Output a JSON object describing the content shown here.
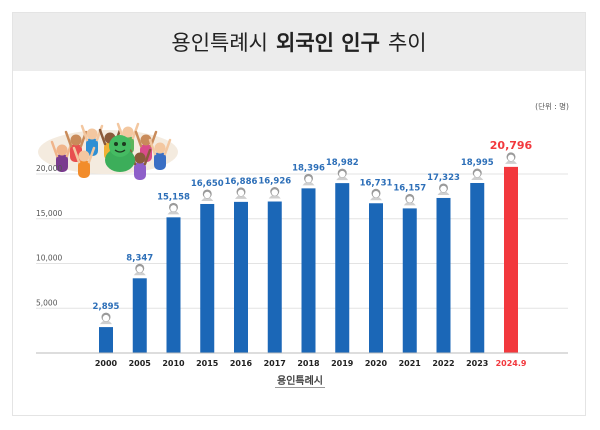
{
  "header": {
    "title_prefix": "용인특례시",
    "title_bold": "외국인 인구",
    "title_suffix": "추이"
  },
  "unit_label": "(단위 : 명)",
  "footer": {
    "logo_text": "용인특례시"
  },
  "colors": {
    "bar": "#1b67b7",
    "bar_highlight": "#f2383d",
    "label": "#2d6fb8",
    "label_highlight": "#f2383d"
  },
  "chart_data": {
    "type": "bar",
    "categories": [
      "2000",
      "2005",
      "2010",
      "2015",
      "2016",
      "2017",
      "2018",
      "2019",
      "2020",
      "2021",
      "2022",
      "2023",
      "2024.9"
    ],
    "values": [
      2895,
      8347,
      15158,
      16650,
      16886,
      16926,
      18396,
      18982,
      16731,
      16157,
      17323,
      18995,
      20796
    ],
    "value_labels": [
      "2,895",
      "8,347",
      "15,158",
      "16,650",
      "16,886",
      "16,926",
      "18,396",
      "18,982",
      "16,731",
      "16,157",
      "17,323",
      "18,995",
      "20,796"
    ],
    "highlight_index": 12,
    "yticks": [
      "5,000",
      "10,000",
      "15,000",
      "20,000"
    ],
    "ytick_values": [
      5000,
      10000,
      15000,
      20000
    ],
    "ylim": [
      0,
      24000
    ],
    "grid": true,
    "title": "",
    "xlabel": "",
    "ylabel": ""
  }
}
